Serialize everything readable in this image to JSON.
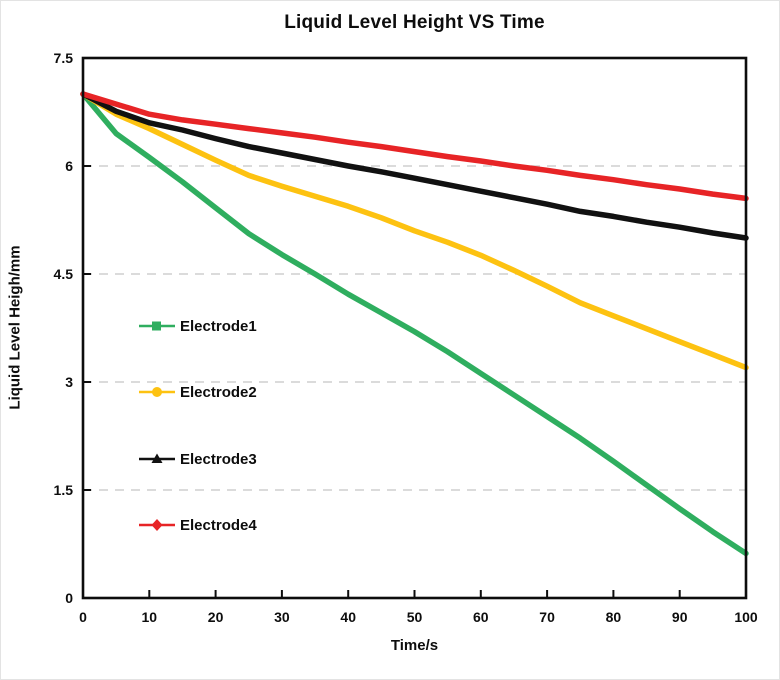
{
  "chart_data": {
    "type": "line",
    "title": "Liquid Level Height VS Time",
    "xlabel": "Time/s",
    "ylabel": "Liquid Level Heigh/mm",
    "xlim": [
      0,
      100
    ],
    "ylim": [
      0,
      7.5
    ],
    "xticks": [
      0,
      10,
      20,
      30,
      40,
      50,
      60,
      70,
      80,
      90,
      100
    ],
    "xtick_labels": [
      "0",
      "10",
      "20",
      "30",
      "40",
      "50",
      "60",
      "70",
      "80",
      "90",
      "100"
    ],
    "yticks": [
      0,
      1.5,
      3,
      4.5,
      6,
      7.5
    ],
    "ytick_labels": [
      "0",
      "1.5",
      "3",
      "4.5",
      "6",
      "7.5"
    ],
    "grid": {
      "y_dashed_at": [
        1.5,
        3,
        4.5,
        6
      ],
      "color": "#cfcfcf",
      "vertical": false
    },
    "legend_position": "inside-left",
    "axis_color": "#0d0d0d",
    "x": [
      0,
      5,
      10,
      15,
      20,
      25,
      30,
      35,
      40,
      45,
      50,
      55,
      60,
      65,
      70,
      75,
      80,
      85,
      90,
      95,
      100
    ],
    "series": [
      {
        "name": "Electrode1",
        "color": "#2fae5f",
        "marker": "square",
        "y": [
          7.0,
          6.45,
          6.12,
          5.78,
          5.42,
          5.06,
          4.77,
          4.5,
          4.22,
          3.96,
          3.7,
          3.42,
          3.12,
          2.82,
          2.52,
          2.22,
          1.9,
          1.57,
          1.24,
          0.92,
          0.62
        ]
      },
      {
        "name": "Electrode2",
        "color": "#fdc211",
        "marker": "circle",
        "y": [
          7.0,
          6.72,
          6.52,
          6.3,
          6.08,
          5.87,
          5.72,
          5.58,
          5.44,
          5.28,
          5.1,
          4.94,
          4.76,
          4.55,
          4.33,
          4.1,
          3.92,
          3.74,
          3.56,
          3.38,
          3.2
        ]
      },
      {
        "name": "Electrode3",
        "color": "#111111",
        "marker": "triangle",
        "y": [
          7.0,
          6.76,
          6.6,
          6.5,
          6.38,
          6.27,
          6.18,
          6.09,
          6.0,
          5.92,
          5.83,
          5.74,
          5.65,
          5.56,
          5.47,
          5.37,
          5.3,
          5.22,
          5.15,
          5.07,
          5.0
        ]
      },
      {
        "name": "Electrode4",
        "color": "#e72426",
        "marker": "diamond",
        "y": [
          7.0,
          6.86,
          6.72,
          6.64,
          6.58,
          6.52,
          6.46,
          6.4,
          6.33,
          6.27,
          6.2,
          6.13,
          6.07,
          6.0,
          5.94,
          5.87,
          5.81,
          5.74,
          5.68,
          5.61,
          5.55
        ]
      }
    ]
  }
}
